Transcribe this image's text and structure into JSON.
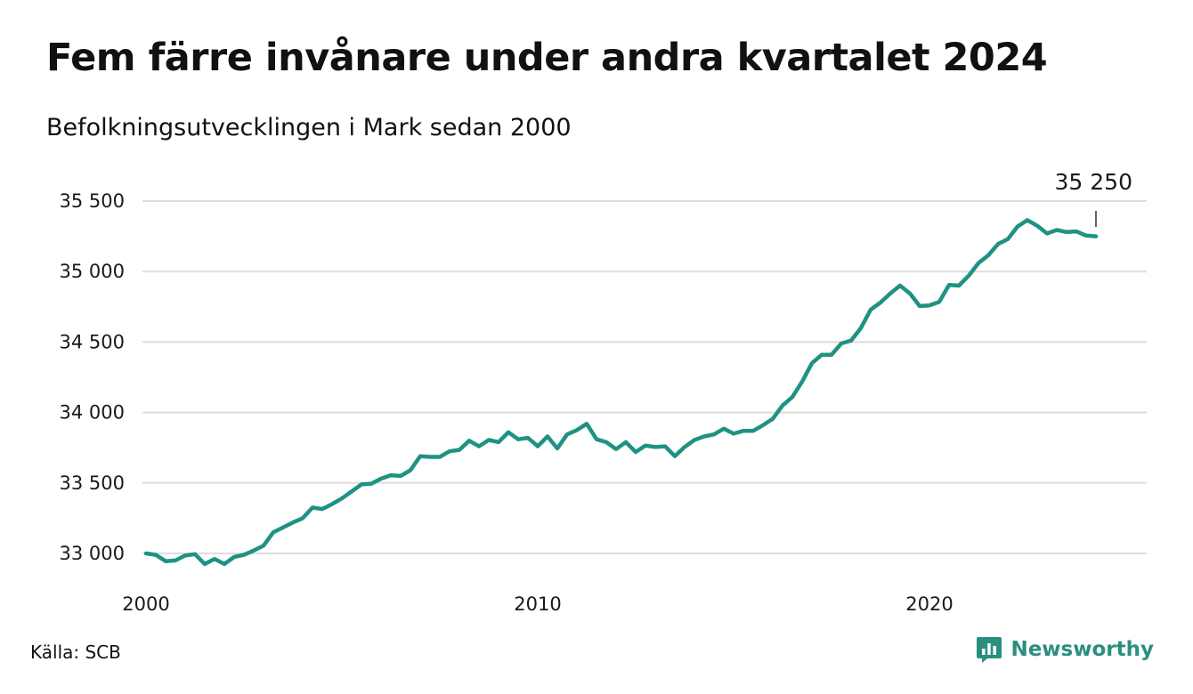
{
  "title": "Fem färre invånare under andra kvartalet 2024",
  "subtitle": "Befolkningsutvecklingen i Mark sedan 2000",
  "source": "Källa: SCB",
  "brand": "Newsworthy",
  "colors": {
    "line": "#1f9282",
    "grid": "#dddddd",
    "brand": "#2a8f7f"
  },
  "chart_data": {
    "type": "line",
    "title": "Fem färre invånare under andra kvartalet 2024",
    "subtitle": "Befolkningsutvecklingen i Mark sedan 2000",
    "xlabel": "",
    "ylabel": "",
    "xlim": [
      2000,
      2024.75
    ],
    "ylim": [
      32900,
      35600
    ],
    "yticks": [
      33000,
      33500,
      34000,
      34500,
      35000,
      35500
    ],
    "ytick_labels": [
      "33 000",
      "33 500",
      "34 000",
      "34 500",
      "35 000",
      "35 500"
    ],
    "xticks": [
      2000,
      2010,
      2020
    ],
    "xtick_labels": [
      "2000",
      "2010",
      "2020"
    ],
    "grid": true,
    "end_label": "35 250",
    "x": [
      2000.0,
      2000.25,
      2000.5,
      2000.75,
      2001.0,
      2001.25,
      2001.5,
      2001.75,
      2002.0,
      2002.25,
      2002.5,
      2002.75,
      2003.0,
      2003.25,
      2003.5,
      2003.75,
      2004.0,
      2004.25,
      2004.5,
      2004.75,
      2005.0,
      2005.25,
      2005.5,
      2005.75,
      2006.0,
      2006.25,
      2006.5,
      2006.75,
      2007.0,
      2007.25,
      2007.5,
      2007.75,
      2008.0,
      2008.25,
      2008.5,
      2008.75,
      2009.0,
      2009.25,
      2009.5,
      2009.75,
      2010.0,
      2010.25,
      2010.5,
      2010.75,
      2011.0,
      2011.25,
      2011.5,
      2011.75,
      2012.0,
      2012.25,
      2012.5,
      2012.75,
      2013.0,
      2013.25,
      2013.5,
      2013.75,
      2014.0,
      2014.25,
      2014.5,
      2014.75,
      2015.0,
      2015.25,
      2015.5,
      2015.75,
      2016.0,
      2016.25,
      2016.5,
      2016.75,
      2017.0,
      2017.25,
      2017.5,
      2017.75,
      2018.0,
      2018.25,
      2018.5,
      2018.75,
      2019.0,
      2019.25,
      2019.5,
      2019.75,
      2020.0,
      2020.25,
      2020.5,
      2020.75,
      2021.0,
      2021.25,
      2021.5,
      2021.75,
      2022.0,
      2022.25,
      2022.5,
      2022.75,
      2023.0,
      2023.25,
      2023.5,
      2023.75,
      2024.0,
      2024.25
    ],
    "series": [
      {
        "values": [
          33000,
          32990,
          32945,
          32950,
          32985,
          32995,
          32925,
          32960,
          32925,
          32975,
          32990,
          33020,
          33055,
          33150,
          33185,
          33220,
          33250,
          33325,
          33315,
          33350,
          33390,
          33440,
          33490,
          33495,
          33530,
          33555,
          33550,
          33590,
          33690,
          33685,
          33685,
          33725,
          33735,
          33800,
          33760,
          33805,
          33790,
          33860,
          33810,
          33820,
          33760,
          33830,
          33745,
          33845,
          33875,
          33920,
          33810,
          33790,
          33740,
          33790,
          33720,
          33765,
          33755,
          33760,
          33690,
          33755,
          33805,
          33830,
          33845,
          33885,
          33850,
          33870,
          33870,
          33910,
          33955,
          34050,
          34110,
          34220,
          34350,
          34410,
          34410,
          34490,
          34510,
          34600,
          34730,
          34780,
          34845,
          34900,
          34845,
          34755,
          34760,
          34785,
          34905,
          34900,
          34970,
          35060,
          35115,
          35195,
          35230,
          35320,
          35365,
          35325,
          35270,
          35295,
          35280,
          35285,
          35255,
          35250
        ]
      }
    ]
  }
}
